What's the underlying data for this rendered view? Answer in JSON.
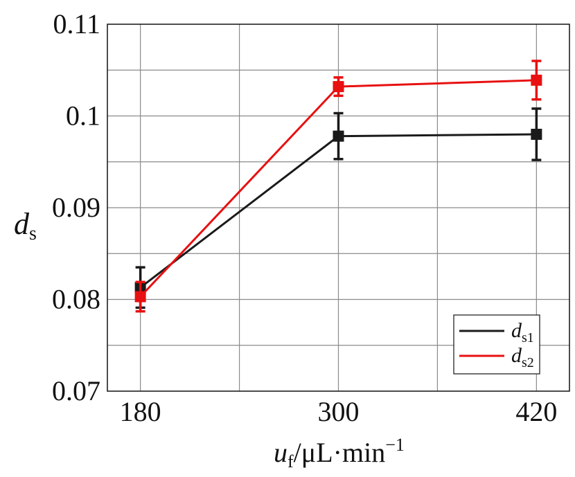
{
  "chart_data": {
    "type": "line",
    "x": [
      180,
      300,
      420
    ],
    "xlim": [
      160,
      440
    ],
    "ylim": [
      0.07,
      0.11
    ],
    "xticks": [
      "180",
      "300",
      "420"
    ],
    "yticks": [
      "0.07",
      "0.08",
      "0.09",
      "0.1",
      "0.11"
    ],
    "ytick_values": [
      0.07,
      0.08,
      0.09,
      0.1,
      0.11
    ],
    "grid": true,
    "legend_position": "bottom-right",
    "xlabel": {
      "var": "u",
      "sub": "f",
      "unit": "/μL·min",
      "sup": "−1"
    },
    "ylabel": {
      "var": "d",
      "sub": "s"
    },
    "series": [
      {
        "name": "ds1",
        "label_var": "d",
        "label_sub": "s1",
        "color": "#1a1a1a",
        "values": [
          0.0813,
          0.0978,
          0.098
        ],
        "errors": [
          0.0022,
          0.0025,
          0.0028
        ]
      },
      {
        "name": "ds2",
        "label_var": "d",
        "label_sub": "s2",
        "color": "#e81010",
        "values": [
          0.0803,
          0.1032,
          0.1039
        ],
        "errors": [
          0.0016,
          0.001,
          0.0021
        ]
      }
    ]
  }
}
